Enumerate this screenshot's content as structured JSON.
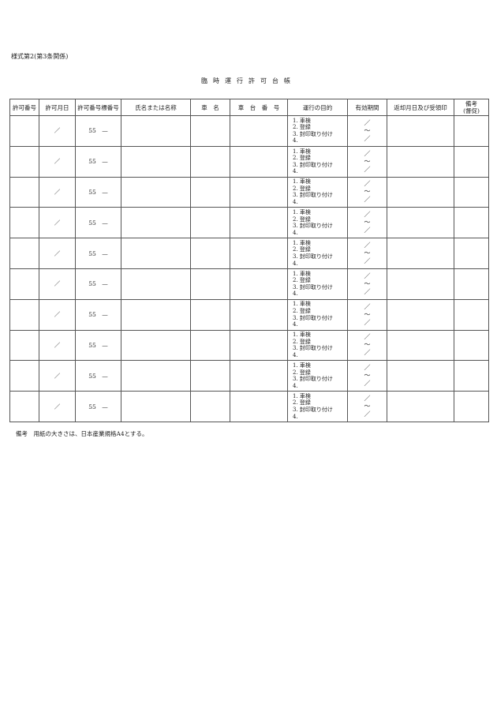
{
  "form_number": "様式第2(第3条関係)",
  "title": "臨時運行許可台帳",
  "headers": [
    "許可番号",
    "許可月日",
    "許可番号標番号",
    "氏名または名称",
    "車　名",
    "車　台　番　号",
    "運行の目的",
    "有効期間",
    "返却月日及び受領印",
    "備考\n(督促)"
  ],
  "row_template": {
    "date": "／",
    "plate": "55　—",
    "purposes": [
      "1. 車検",
      "2. 登録",
      "3. 封印取り付け",
      "4."
    ],
    "period": [
      "／",
      "～",
      "／"
    ]
  },
  "row_count": 10,
  "footnote": "備考　用紙の大きさは、日本産業規格A4とする。"
}
